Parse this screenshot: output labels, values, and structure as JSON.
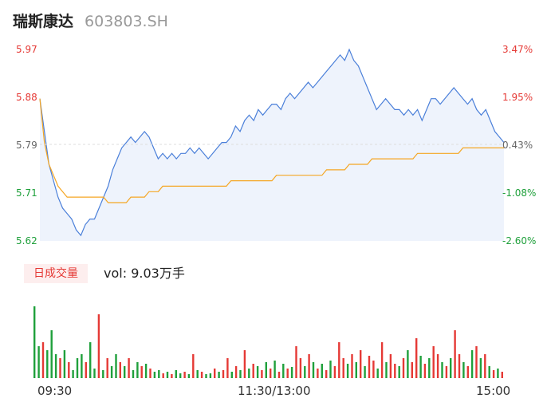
{
  "header": {
    "stock_name": "瑞斯康达",
    "stock_code": "603803.SH"
  },
  "volume_panel": {
    "badge": "日成交量",
    "vol_label": "vol:",
    "vol_value": "9.03万手"
  },
  "colors": {
    "up": "#e53935",
    "down": "#1fa03b",
    "price_line": "#4a7fd9",
    "avg_line": "#f5a623",
    "fill": "#eef3fc"
  },
  "chart_data": [
    {
      "type": "line",
      "title": "",
      "y_left_ticks": [
        "5.97",
        "5.88",
        "5.79",
        "5.71",
        "5.62"
      ],
      "y_right_ticks": [
        "3.47%",
        "1.95%",
        "0.43%",
        "-1.08%",
        "-2.60%"
      ],
      "ylim": [
        5.62,
        5.97
      ],
      "x_ticks": [
        "09:30",
        "11:30/13:00",
        "15:00"
      ],
      "series": [
        {
          "values": [
            5.88,
            5.82,
            5.76,
            5.73,
            5.7,
            5.68,
            5.67,
            5.66,
            5.64,
            5.63,
            5.65,
            5.66,
            5.66,
            5.68,
            5.7,
            5.72,
            5.75,
            5.77,
            5.79,
            5.8,
            5.81,
            5.8,
            5.81,
            5.82,
            5.81,
            5.79,
            5.77,
            5.78,
            5.77,
            5.78,
            5.77,
            5.78,
            5.78,
            5.79,
            5.78,
            5.79,
            5.78,
            5.77,
            5.78,
            5.79,
            5.8,
            5.8,
            5.81,
            5.83,
            5.82,
            5.84,
            5.85,
            5.84,
            5.86,
            5.85,
            5.86,
            5.87,
            5.87,
            5.86,
            5.88,
            5.89,
            5.88,
            5.89,
            5.9,
            5.91,
            5.9,
            5.91,
            5.92,
            5.93,
            5.94,
            5.95,
            5.96,
            5.95,
            5.97,
            5.95,
            5.94,
            5.92,
            5.9,
            5.88,
            5.86,
            5.87,
            5.88,
            5.87,
            5.86,
            5.86,
            5.85,
            5.86,
            5.85,
            5.86,
            5.84,
            5.86,
            5.88,
            5.88,
            5.87,
            5.88,
            5.89,
            5.9,
            5.89,
            5.88,
            5.87,
            5.88,
            5.86,
            5.85,
            5.86,
            5.84,
            5.82,
            5.81,
            5.8
          ]
        },
        {
          "values": [
            5.88,
            5.8,
            5.76,
            5.74,
            5.72,
            5.71,
            5.7,
            5.7,
            5.7,
            5.7,
            5.7,
            5.7,
            5.7,
            5.7,
            5.7,
            5.69,
            5.69,
            5.69,
            5.69,
            5.69,
            5.7,
            5.7,
            5.7,
            5.7,
            5.71,
            5.71,
            5.71,
            5.72,
            5.72,
            5.72,
            5.72,
            5.72,
            5.72,
            5.72,
            5.72,
            5.72,
            5.72,
            5.72,
            5.72,
            5.72,
            5.72,
            5.72,
            5.73,
            5.73,
            5.73,
            5.73,
            5.73,
            5.73,
            5.73,
            5.73,
            5.73,
            5.73,
            5.74,
            5.74,
            5.74,
            5.74,
            5.74,
            5.74,
            5.74,
            5.74,
            5.74,
            5.74,
            5.74,
            5.75,
            5.75,
            5.75,
            5.75,
            5.75,
            5.76,
            5.76,
            5.76,
            5.76,
            5.76,
            5.77,
            5.77,
            5.77,
            5.77,
            5.77,
            5.77,
            5.77,
            5.77,
            5.77,
            5.77,
            5.78,
            5.78,
            5.78,
            5.78,
            5.78,
            5.78,
            5.78,
            5.78,
            5.78,
            5.78,
            5.79,
            5.79,
            5.79,
            5.79,
            5.79,
            5.79,
            5.79,
            5.79,
            5.79,
            5.79
          ]
        }
      ]
    },
    {
      "type": "bar",
      "title": "",
      "ylim": [
        0,
        100
      ],
      "values": [
        90,
        40,
        45,
        35,
        60,
        30,
        25,
        35,
        20,
        10,
        25,
        30,
        20,
        45,
        12,
        80,
        10,
        25,
        15,
        30,
        20,
        15,
        25,
        10,
        20,
        15,
        18,
        12,
        8,
        10,
        6,
        8,
        5,
        10,
        6,
        8,
        5,
        30,
        10,
        8,
        5,
        6,
        12,
        8,
        10,
        25,
        8,
        15,
        10,
        35,
        12,
        18,
        15,
        10,
        20,
        12,
        22,
        8,
        18,
        12,
        14,
        40,
        25,
        15,
        30,
        20,
        12,
        18,
        10,
        22,
        15,
        45,
        25,
        18,
        30,
        20,
        35,
        15,
        28,
        22,
        12,
        45,
        20,
        30,
        18,
        15,
        25,
        35,
        20,
        50,
        28,
        18,
        25,
        40,
        30,
        20,
        15,
        25,
        60,
        30,
        20,
        15,
        35,
        40,
        25,
        30,
        15,
        10,
        12,
        8
      ],
      "directions": [
        "d",
        "d",
        "u",
        "d",
        "d",
        "d",
        "u",
        "d",
        "u",
        "d",
        "d",
        "d",
        "u",
        "d",
        "d",
        "u",
        "d",
        "u",
        "d",
        "d",
        "u",
        "d",
        "u",
        "d",
        "d",
        "u",
        "d",
        "u",
        "d",
        "d",
        "u",
        "d",
        "u",
        "d",
        "d",
        "u",
        "d",
        "u",
        "d",
        "u",
        "d",
        "d",
        "u",
        "d",
        "u",
        "u",
        "d",
        "u",
        "d",
        "u",
        "d",
        "u",
        "d",
        "u",
        "d",
        "u",
        "d",
        "u",
        "d",
        "u",
        "d",
        "u",
        "u",
        "d",
        "u",
        "d",
        "u",
        "d",
        "u",
        "d",
        "u",
        "u",
        "u",
        "d",
        "u",
        "d",
        "u",
        "d",
        "u",
        "u",
        "d",
        "u",
        "d",
        "u",
        "u",
        "d",
        "u",
        "d",
        "u",
        "u",
        "d",
        "u",
        "d",
        "u",
        "u",
        "d",
        "u",
        "d",
        "u",
        "u",
        "d",
        "u",
        "d",
        "u",
        "d",
        "u",
        "d",
        "u",
        "d",
        "u"
      ]
    }
  ]
}
